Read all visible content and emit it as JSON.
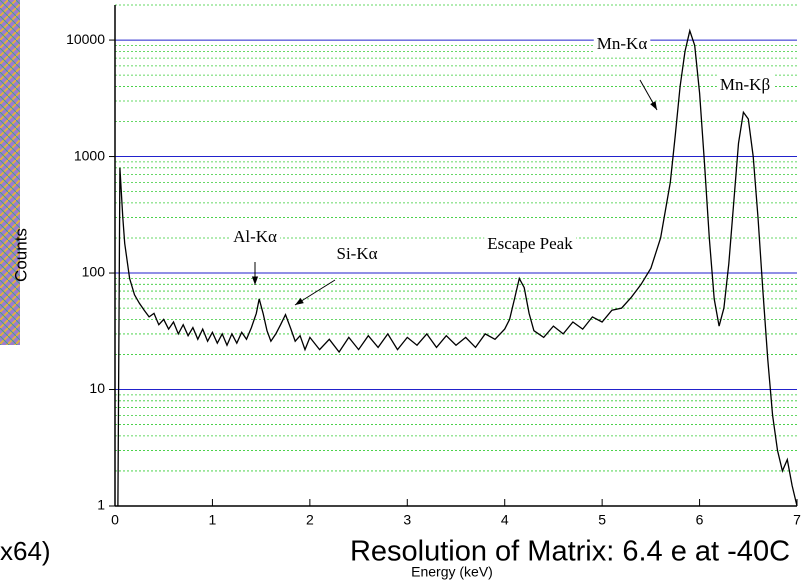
{
  "chart_data": {
    "type": "line",
    "y_label": "Counts",
    "x_label": "Energy (keV)",
    "caption": "Resolution of Matrix: 6.4 e at -40C",
    "side_text": "x64)",
    "annotations": [
      "Mn-Kα",
      "Mn-Kβ",
      "Al-Kα",
      "Si-Kα",
      "Escape Peak"
    ],
    "xlim": [
      0,
      7
    ],
    "xticks": [
      0,
      1,
      2,
      3,
      4,
      5,
      6,
      7
    ],
    "ylim": [
      1,
      20000
    ],
    "yticks": [
      1,
      10,
      100,
      1000,
      10000
    ],
    "log_y": true,
    "grid": true,
    "minor_grid": true,
    "grid_color": "#2222cc",
    "minor_grid_color": "#33cc33",
    "series": [
      {
        "color": "#000000",
        "x": [
          0.03,
          0.05,
          0.08,
          0.1,
          0.15,
          0.2,
          0.25,
          0.3,
          0.35,
          0.4,
          0.45,
          0.5,
          0.55,
          0.6,
          0.65,
          0.7,
          0.75,
          0.8,
          0.85,
          0.9,
          0.95,
          1.0,
          1.05,
          1.1,
          1.15,
          1.2,
          1.25,
          1.3,
          1.35,
          1.4,
          1.45,
          1.48,
          1.52,
          1.56,
          1.6,
          1.65,
          1.7,
          1.75,
          1.8,
          1.85,
          1.9,
          1.95,
          2.0,
          2.1,
          2.2,
          2.3,
          2.4,
          2.5,
          2.6,
          2.7,
          2.8,
          2.9,
          3.0,
          3.1,
          3.2,
          3.3,
          3.4,
          3.5,
          3.6,
          3.7,
          3.8,
          3.9,
          4.0,
          4.05,
          4.1,
          4.15,
          4.2,
          4.25,
          4.3,
          4.4,
          4.5,
          4.6,
          4.7,
          4.8,
          4.9,
          5.0,
          5.1,
          5.2,
          5.3,
          5.4,
          5.5,
          5.6,
          5.7,
          5.75,
          5.8,
          5.85,
          5.9,
          5.95,
          6.0,
          6.05,
          6.1,
          6.15,
          6.2,
          6.25,
          6.3,
          6.35,
          6.4,
          6.45,
          6.5,
          6.55,
          6.6,
          6.65,
          6.7,
          6.75,
          6.8,
          6.85,
          6.9,
          6.95,
          7.0
        ],
        "values": [
          1,
          800,
          300,
          180,
          90,
          65,
          55,
          48,
          42,
          45,
          36,
          40,
          33,
          38,
          30,
          36,
          29,
          34,
          27,
          33,
          26,
          31,
          25,
          30,
          24,
          30,
          25,
          31,
          27,
          34,
          45,
          60,
          45,
          32,
          26,
          30,
          36,
          44,
          34,
          26,
          29,
          22,
          28,
          22,
          27,
          21,
          28,
          22,
          29,
          23,
          30,
          22,
          28,
          24,
          30,
          23,
          29,
          24,
          28,
          23,
          30,
          27,
          33,
          40,
          60,
          90,
          75,
          45,
          32,
          28,
          35,
          30,
          38,
          33,
          42,
          38,
          48,
          50,
          62,
          80,
          110,
          200,
          600,
          1500,
          4000,
          8000,
          12000,
          9000,
          3500,
          900,
          200,
          60,
          35,
          50,
          120,
          400,
          1300,
          2400,
          2100,
          1000,
          300,
          70,
          18,
          6,
          3,
          2,
          2.5,
          1.5,
          1
        ]
      }
    ]
  }
}
